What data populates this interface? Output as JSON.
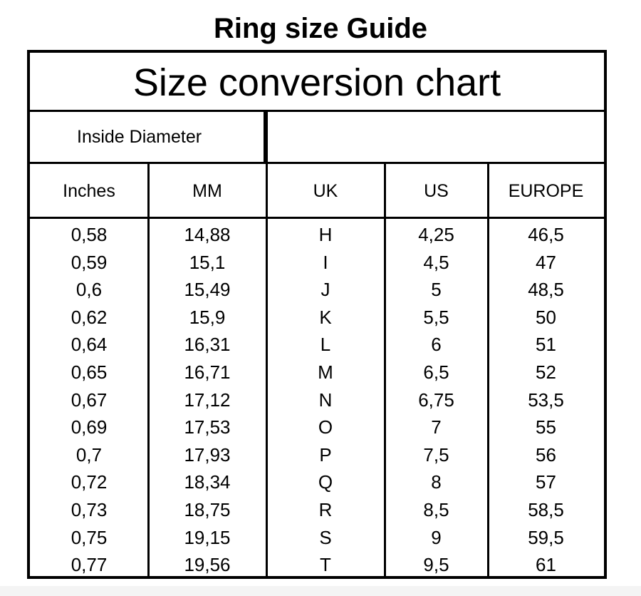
{
  "doc_title": "Ring size Guide",
  "chart": {
    "title": "Size conversion chart",
    "inside_diameter_label": "Inside Diameter",
    "headers": [
      "Inches",
      "MM",
      "UK",
      "US",
      "EUROPE"
    ],
    "rows": [
      [
        "0,58",
        "14,88",
        "H",
        "4,25",
        "46,5"
      ],
      [
        "0,59",
        "15,1",
        "I",
        "4,5",
        "47"
      ],
      [
        "0,6",
        "15,49",
        "J",
        "5",
        "48,5"
      ],
      [
        "0,62",
        "15,9",
        "K",
        "5,5",
        "50"
      ],
      [
        "0,64",
        "16,31",
        "L",
        "6",
        "51"
      ],
      [
        "0,65",
        "16,71",
        "M",
        "6,5",
        "52"
      ],
      [
        "0,67",
        "17,12",
        "N",
        "6,75",
        "53,5"
      ],
      [
        "0,69",
        "17,53",
        "O",
        "7",
        "55"
      ],
      [
        "0,7",
        "17,93",
        "P",
        "7,5",
        "56"
      ],
      [
        "0,72",
        "18,34",
        "Q",
        "8",
        "57"
      ],
      [
        "0,73",
        "18,75",
        "R",
        "8,5",
        "58,5"
      ],
      [
        "0,75",
        "19,15",
        "S",
        "9",
        "59,5"
      ],
      [
        "0,77",
        "19,56",
        "T",
        "9,5",
        "61"
      ]
    ]
  }
}
